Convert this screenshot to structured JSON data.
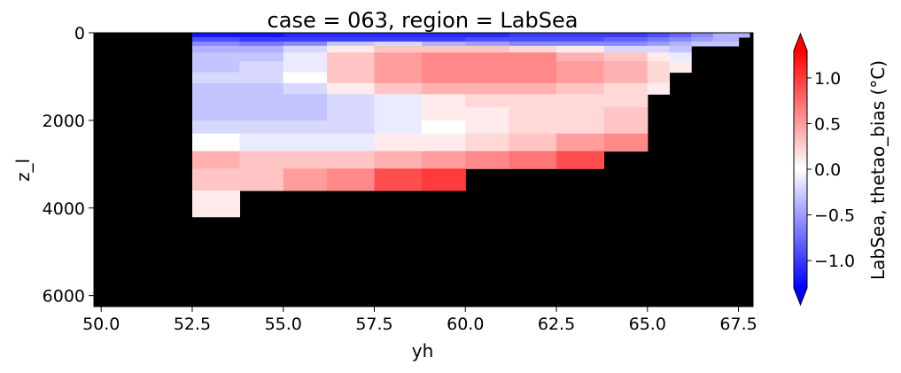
{
  "chart_data": {
    "type": "heatmap",
    "title": "case = 063, region = LabSea",
    "xlabel": "yh",
    "ylabel": "z_l",
    "xlim": [
      49.8,
      67.9
    ],
    "ylim": [
      6250,
      0
    ],
    "x_ticks": [
      {
        "value": 50.0,
        "label": "50.0"
      },
      {
        "value": 52.5,
        "label": "52.5"
      },
      {
        "value": 55.0,
        "label": "55.0"
      },
      {
        "value": 57.5,
        "label": "57.5"
      },
      {
        "value": 60.0,
        "label": "60.0"
      },
      {
        "value": 62.5,
        "label": "62.5"
      },
      {
        "value": 65.0,
        "label": "65.0"
      },
      {
        "value": 67.5,
        "label": "67.5"
      }
    ],
    "y_ticks": [
      {
        "value": 0,
        "label": "0"
      },
      {
        "value": 2000,
        "label": "2000"
      },
      {
        "value": 4000,
        "label": "4000"
      },
      {
        "value": 6000,
        "label": "6000"
      }
    ],
    "colorbar": {
      "label": "LabSea, thetao_bias (°C)",
      "cmap": "bwr",
      "vmin": -1.3,
      "vmax": 1.3,
      "extend": "both",
      "ticks": [
        {
          "value": -1.0,
          "label": "−1.0"
        },
        {
          "value": -0.5,
          "label": "−0.5"
        },
        {
          "value": 0.0,
          "label": "0.0"
        },
        {
          "value": 0.5,
          "label": "0.5"
        },
        {
          "value": 1.0,
          "label": "1.0"
        }
      ]
    },
    "mask_color": "#000000",
    "x_edges": [
      52.5,
      53.8,
      55.0,
      56.2,
      57.5,
      58.8,
      60.0,
      61.2,
      62.5,
      63.8,
      65.0,
      65.6,
      66.2,
      66.8,
      67.5,
      67.8
    ],
    "y_edges": [
      0,
      100,
      200,
      300,
      450,
      650,
      900,
      1150,
      1400,
      1700,
      2000,
      2300,
      2700,
      3100,
      3600,
      4200
    ],
    "values": [
      [
        -1.2,
        -1.2,
        -1.1,
        -1.1,
        -1.1,
        -1.1,
        -1.1,
        -1.0,
        -1.0,
        -1.0,
        -0.9,
        -0.8,
        -0.6,
        -0.4,
        -0.4
      ],
      [
        -0.9,
        -1.0,
        -1.0,
        -1.0,
        -1.0,
        -1.0,
        -0.9,
        -0.9,
        -0.9,
        -0.8,
        -0.7,
        -0.6,
        -0.5,
        -0.4,
        null
      ],
      [
        -0.6,
        -0.7,
        -0.6,
        -0.3,
        -0.2,
        -0.4,
        -0.5,
        -0.6,
        -0.6,
        -0.6,
        -0.5,
        -0.4,
        -0.3,
        -0.3,
        null
      ],
      [
        -0.4,
        -0.4,
        -0.2,
        0.1,
        0.3,
        0.3,
        0.3,
        0.2,
        0.1,
        -0.2,
        -0.2,
        -0.3,
        null,
        null,
        null
      ],
      [
        -0.3,
        -0.3,
        -0.1,
        0.3,
        0.5,
        0.6,
        0.6,
        0.6,
        0.4,
        0.3,
        0.1,
        -0.1,
        null,
        null,
        null
      ],
      [
        -0.3,
        -0.2,
        -0.1,
        0.3,
        0.5,
        0.6,
        0.6,
        0.6,
        0.5,
        0.4,
        0.2,
        0.1,
        null,
        null,
        null
      ],
      [
        -0.2,
        -0.2,
        0.0,
        0.3,
        0.5,
        0.6,
        0.6,
        0.6,
        0.5,
        0.4,
        0.2,
        null,
        null,
        null,
        null
      ],
      [
        -0.3,
        -0.3,
        -0.2,
        0.1,
        0.3,
        0.4,
        0.4,
        0.4,
        0.3,
        0.2,
        0.1,
        null,
        null,
        null,
        null
      ],
      [
        -0.3,
        -0.3,
        -0.3,
        -0.2,
        -0.1,
        0.1,
        0.2,
        0.2,
        0.2,
        0.2,
        null,
        null,
        null,
        null,
        null
      ],
      [
        -0.3,
        -0.3,
        -0.3,
        -0.2,
        -0.1,
        0.1,
        0.1,
        0.2,
        0.2,
        0.3,
        null,
        null,
        null,
        null,
        null
      ],
      [
        -0.2,
        -0.2,
        -0.2,
        -0.2,
        -0.1,
        0.0,
        0.1,
        0.2,
        0.2,
        0.3,
        null,
        null,
        null,
        null,
        null
      ],
      [
        0.0,
        -0.1,
        -0.1,
        -0.1,
        0.1,
        0.1,
        0.2,
        0.3,
        0.5,
        0.6,
        null,
        null,
        null,
        null,
        null
      ],
      [
        0.4,
        0.3,
        0.3,
        0.3,
        0.4,
        0.5,
        0.6,
        0.7,
        0.9,
        null,
        null,
        null,
        null,
        null,
        null
      ],
      [
        0.3,
        0.3,
        0.5,
        0.6,
        0.9,
        1.0,
        null,
        null,
        null,
        null,
        null,
        null,
        null,
        null,
        null
      ],
      [
        0.1,
        null,
        null,
        null,
        null,
        null,
        null,
        null,
        null,
        null,
        null,
        null,
        null,
        null,
        null
      ]
    ]
  }
}
